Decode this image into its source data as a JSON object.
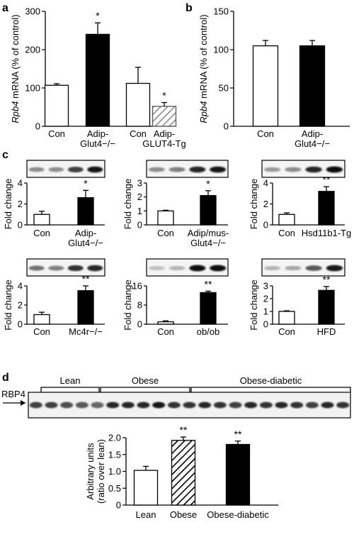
{
  "panel_letters": {
    "a": "a",
    "b": "b",
    "c": "c",
    "d": "d"
  },
  "chart_data": [
    {
      "panel": "a",
      "type": "bar",
      "ylabel_prefix": "Rpb4",
      "ylabel_suffix": " mRNA (% of control)",
      "ylim": [
        0,
        300
      ],
      "yticks": [
        0,
        100,
        200,
        300
      ],
      "categories": [
        "Con",
        "Adip-Glut4−/−",
        "Con",
        "Adip-GLUT4-Tg"
      ],
      "values": [
        107,
        240,
        112,
        52
      ],
      "errors": [
        4,
        30,
        42,
        10
      ],
      "fills": [
        "white",
        "black",
        "white",
        "hatched"
      ],
      "significance": [
        "",
        "*",
        "",
        "*"
      ],
      "group_labels": [
        {
          "lines": [
            "Con"
          ]
        },
        {
          "lines": [
            "Adip-",
            "Glut4−/−"
          ]
        },
        {
          "lines": [
            "Con"
          ]
        },
        {
          "lines": [
            "Adip-",
            "GLUT4-Tg"
          ]
        }
      ]
    },
    {
      "panel": "b",
      "type": "bar",
      "ylabel_prefix": "Rpb4",
      "ylabel_suffix": " mRNA (% of control)",
      "ylim": [
        0,
        150
      ],
      "yticks": [
        0,
        50,
        100,
        150
      ],
      "categories": [
        "Con",
        "Adip-Glut4−/−"
      ],
      "values": [
        105,
        105
      ],
      "errors": [
        7,
        7
      ],
      "fills": [
        "white",
        "black"
      ],
      "significance": [
        "",
        ""
      ],
      "group_labels": [
        {
          "lines": [
            "Con"
          ]
        },
        {
          "lines": [
            "Adip-",
            "Glut4−/−"
          ]
        }
      ]
    },
    {
      "panel": "c1",
      "type": "bar",
      "ylabel": "Fold change",
      "ylim": [
        0,
        4
      ],
      "yticks": [
        0,
        2,
        4
      ],
      "categories": [
        "Con",
        "Adip-Glut4−/−"
      ],
      "values": [
        1.0,
        2.6
      ],
      "errors": [
        0.3,
        0.7
      ],
      "fills": [
        "white",
        "black"
      ],
      "significance": [
        "",
        "*"
      ],
      "group_labels": [
        {
          "lines": [
            "Con"
          ]
        },
        {
          "lines": [
            "Adip-",
            "Glut4−/−"
          ]
        }
      ]
    },
    {
      "panel": "c2",
      "type": "bar",
      "ylabel": "Fold change",
      "ylim": [
        0,
        3
      ],
      "yticks": [
        0,
        1,
        2,
        3
      ],
      "categories": [
        "Con",
        "Adip/mus-Glut4−/−"
      ],
      "values": [
        1.0,
        2.1
      ],
      "errors": [
        0.05,
        0.35
      ],
      "fills": [
        "white",
        "black"
      ],
      "significance": [
        "",
        "*"
      ],
      "group_labels": [
        {
          "lines": [
            "Con"
          ]
        },
        {
          "lines": [
            "Adip/mus-",
            "Glut4−/−"
          ]
        }
      ]
    },
    {
      "panel": "c3",
      "type": "bar",
      "ylabel": "Fold change",
      "ylim": [
        0,
        4
      ],
      "yticks": [
        0,
        2,
        4
      ],
      "categories": [
        "Con",
        "Hsd11b1-Tg"
      ],
      "values": [
        1.0,
        3.2
      ],
      "errors": [
        0.15,
        0.45
      ],
      "fills": [
        "white",
        "black"
      ],
      "significance": [
        "",
        "**"
      ],
      "group_labels": [
        {
          "lines": [
            "Con"
          ]
        },
        {
          "lines": [
            "Hsd11b1-Tg"
          ]
        }
      ]
    },
    {
      "panel": "c4",
      "type": "bar",
      "ylabel": "Fold change",
      "ylim": [
        0,
        4
      ],
      "yticks": [
        0,
        2,
        4
      ],
      "categories": [
        "Con",
        "Mc4r−/−"
      ],
      "values": [
        1.0,
        3.5
      ],
      "errors": [
        0.25,
        0.5
      ],
      "fills": [
        "white",
        "black"
      ],
      "significance": [
        "",
        "**"
      ],
      "group_labels": [
        {
          "lines": [
            "Con"
          ]
        },
        {
          "lines": [
            "Mc4r−/−"
          ]
        }
      ]
    },
    {
      "panel": "c5",
      "type": "bar",
      "ylabel": "Fold change",
      "ylim": [
        0,
        16
      ],
      "yticks": [
        0,
        8,
        16
      ],
      "categories": [
        "Con",
        "ob/ob"
      ],
      "values": [
        1.0,
        13.2
      ],
      "errors": [
        0.4,
        0.6
      ],
      "fills": [
        "white",
        "black"
      ],
      "significance": [
        "",
        "**"
      ],
      "group_labels": [
        {
          "lines": [
            "Con"
          ]
        },
        {
          "lines": [
            "ob/ob"
          ]
        }
      ]
    },
    {
      "panel": "c6",
      "type": "bar",
      "ylabel": "Fold change",
      "ylim": [
        0,
        3
      ],
      "yticks": [
        0,
        1,
        2,
        3
      ],
      "categories": [
        "Con",
        "HFD"
      ],
      "values": [
        1.0,
        2.65
      ],
      "errors": [
        0.05,
        0.3
      ],
      "fills": [
        "white",
        "black"
      ],
      "significance": [
        "",
        "**"
      ],
      "group_labels": [
        {
          "lines": [
            "Con"
          ]
        },
        {
          "lines": [
            "HFD"
          ]
        }
      ]
    },
    {
      "panel": "d",
      "type": "bar",
      "ylabel_lines": [
        "Arbitrary units",
        "(ratio over lean)"
      ],
      "ylim": [
        0,
        2.0
      ],
      "yticks": [
        "0",
        "0.5",
        "1.0",
        "1.5",
        "2.0"
      ],
      "categories": [
        "Lean",
        "Obese",
        "Obese-diabetic"
      ],
      "values": [
        1.03,
        1.92,
        1.8
      ],
      "errors": [
        0.12,
        0.1,
        0.1
      ],
      "fills": [
        "white",
        "hatched",
        "black"
      ],
      "significance": [
        "",
        "**",
        "**"
      ],
      "group_labels": [
        {
          "lines": [
            "Lean"
          ]
        },
        {
          "lines": [
            "Obese"
          ]
        },
        {
          "lines": [
            "Obese-diabetic"
          ]
        }
      ]
    }
  ],
  "western_blot_d": {
    "protein_label": "RBP4",
    "groups": [
      "Lean",
      "Obese",
      "Obese-diabetic"
    ]
  }
}
